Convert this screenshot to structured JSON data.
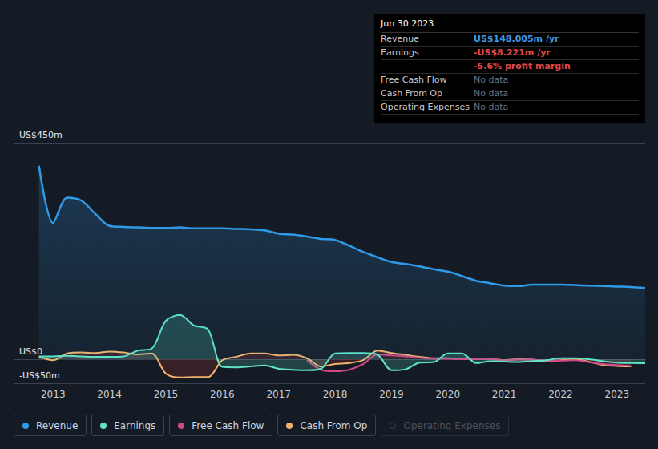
{
  "chart_data": {
    "type": "line",
    "x": [
      2012.75,
      2013.0,
      2013.25,
      2013.5,
      2013.75,
      2014.0,
      2014.25,
      2014.5,
      2014.75,
      2015.0,
      2015.25,
      2015.5,
      2015.75,
      2016.0,
      2016.25,
      2016.5,
      2016.75,
      2017.0,
      2017.25,
      2017.5,
      2017.75,
      2018.0,
      2018.25,
      2018.5,
      2018.75,
      2019.0,
      2019.25,
      2019.5,
      2019.75,
      2020.0,
      2020.25,
      2020.5,
      2020.75,
      2021.0,
      2021.25,
      2021.5,
      2021.75,
      2022.0,
      2022.25,
      2022.5,
      2022.75,
      2023.0,
      2023.25,
      2023.5
    ],
    "series": [
      {
        "name": "Revenue",
        "color": "#2f9ae8",
        "values": [
          402,
          283,
          336,
          330,
          302,
          277,
          275,
          274,
          273,
          273,
          274,
          272,
          272,
          272,
          271,
          270,
          268,
          261,
          259,
          255,
          250,
          248,
          236,
          223,
          212,
          202,
          198,
          193,
          187,
          182,
          173,
          163,
          158,
          153,
          152,
          155,
          155,
          155,
          154,
          153,
          152,
          151,
          150,
          148.005
        ]
      },
      {
        "name": "Earnings",
        "color": "#5ee6c6",
        "values": [
          6,
          6,
          7,
          6,
          5,
          5,
          6,
          18,
          22,
          80,
          92,
          70,
          62,
          -16,
          -17,
          -15,
          -13,
          -20,
          -22,
          -23,
          -20,
          12,
          13,
          13,
          10,
          -23,
          -21,
          -7,
          -6,
          12,
          12,
          -8,
          -4,
          -5,
          -6,
          -4,
          -2,
          2,
          2,
          0,
          -4,
          -7,
          -8,
          -8.221
        ]
      },
      {
        "name": "Free Cash Flow",
        "color": "#d2468a",
        "values": [
          null,
          null,
          null,
          null,
          null,
          null,
          null,
          null,
          null,
          null,
          null,
          null,
          null,
          null,
          null,
          null,
          null,
          null,
          null,
          -2,
          -22,
          -25,
          -22,
          -10,
          10,
          8,
          6,
          3,
          1,
          1,
          0,
          0,
          0,
          -2,
          -1,
          -1,
          -3,
          -3,
          -2,
          -6,
          -10,
          -12,
          -14,
          null
        ]
      },
      {
        "name": "Cash From Op",
        "color": "#f2b46a",
        "values": [
          5,
          -2,
          12,
          14,
          13,
          16,
          14,
          10,
          12,
          -30,
          -38,
          -37,
          -37,
          -2,
          5,
          12,
          12,
          8,
          9,
          2,
          -15,
          -10,
          -8,
          -2,
          18,
          13,
          9,
          5,
          2,
          2,
          0,
          0,
          0,
          -2,
          0,
          -1,
          -4,
          -2,
          0,
          -5,
          -12,
          -14,
          -15,
          null
        ]
      },
      {
        "name": "Operating Expenses",
        "color": "#3a4150",
        "values": [
          null,
          null,
          null,
          null,
          null,
          null,
          null,
          null,
          null,
          null,
          null,
          null,
          null,
          null,
          null,
          null,
          null,
          null,
          null,
          null,
          null,
          null,
          null,
          null,
          null,
          null,
          null,
          null,
          null,
          null,
          null,
          null,
          null,
          null,
          null,
          null,
          null,
          null,
          null,
          null,
          null,
          null,
          null,
          null
        ]
      }
    ],
    "xlim": [
      2012.3,
      2023.5
    ],
    "xticks": [
      2013,
      2014,
      2015,
      2016,
      2017,
      2018,
      2019,
      2020,
      2021,
      2022,
      2023
    ],
    "ylim": [
      -50,
      450
    ],
    "yticks": [
      {
        "value": -50,
        "label": "-US$50m"
      },
      {
        "value": 0,
        "label": "US$0"
      },
      {
        "value": 450,
        "label": "US$450m"
      }
    ],
    "grid": true,
    "legend": "bottom-left",
    "info_box": {
      "title": "Jun 30 2023",
      "rows": [
        {
          "label": "Revenue",
          "value": "US$148.005m /yr",
          "color": "#3b9be8"
        },
        {
          "label": "Earnings",
          "value": "-US$8.221m /yr",
          "color": "#e04848",
          "note": "-5.6% profit margin"
        },
        {
          "label": "Free Cash Flow",
          "value": "No data",
          "color": "#6b7280"
        },
        {
          "label": "Cash From Op",
          "value": "No data",
          "color": "#6b7280"
        },
        {
          "label": "Operating Expenses",
          "value": "No data",
          "color": "#6b7280"
        }
      ]
    }
  }
}
